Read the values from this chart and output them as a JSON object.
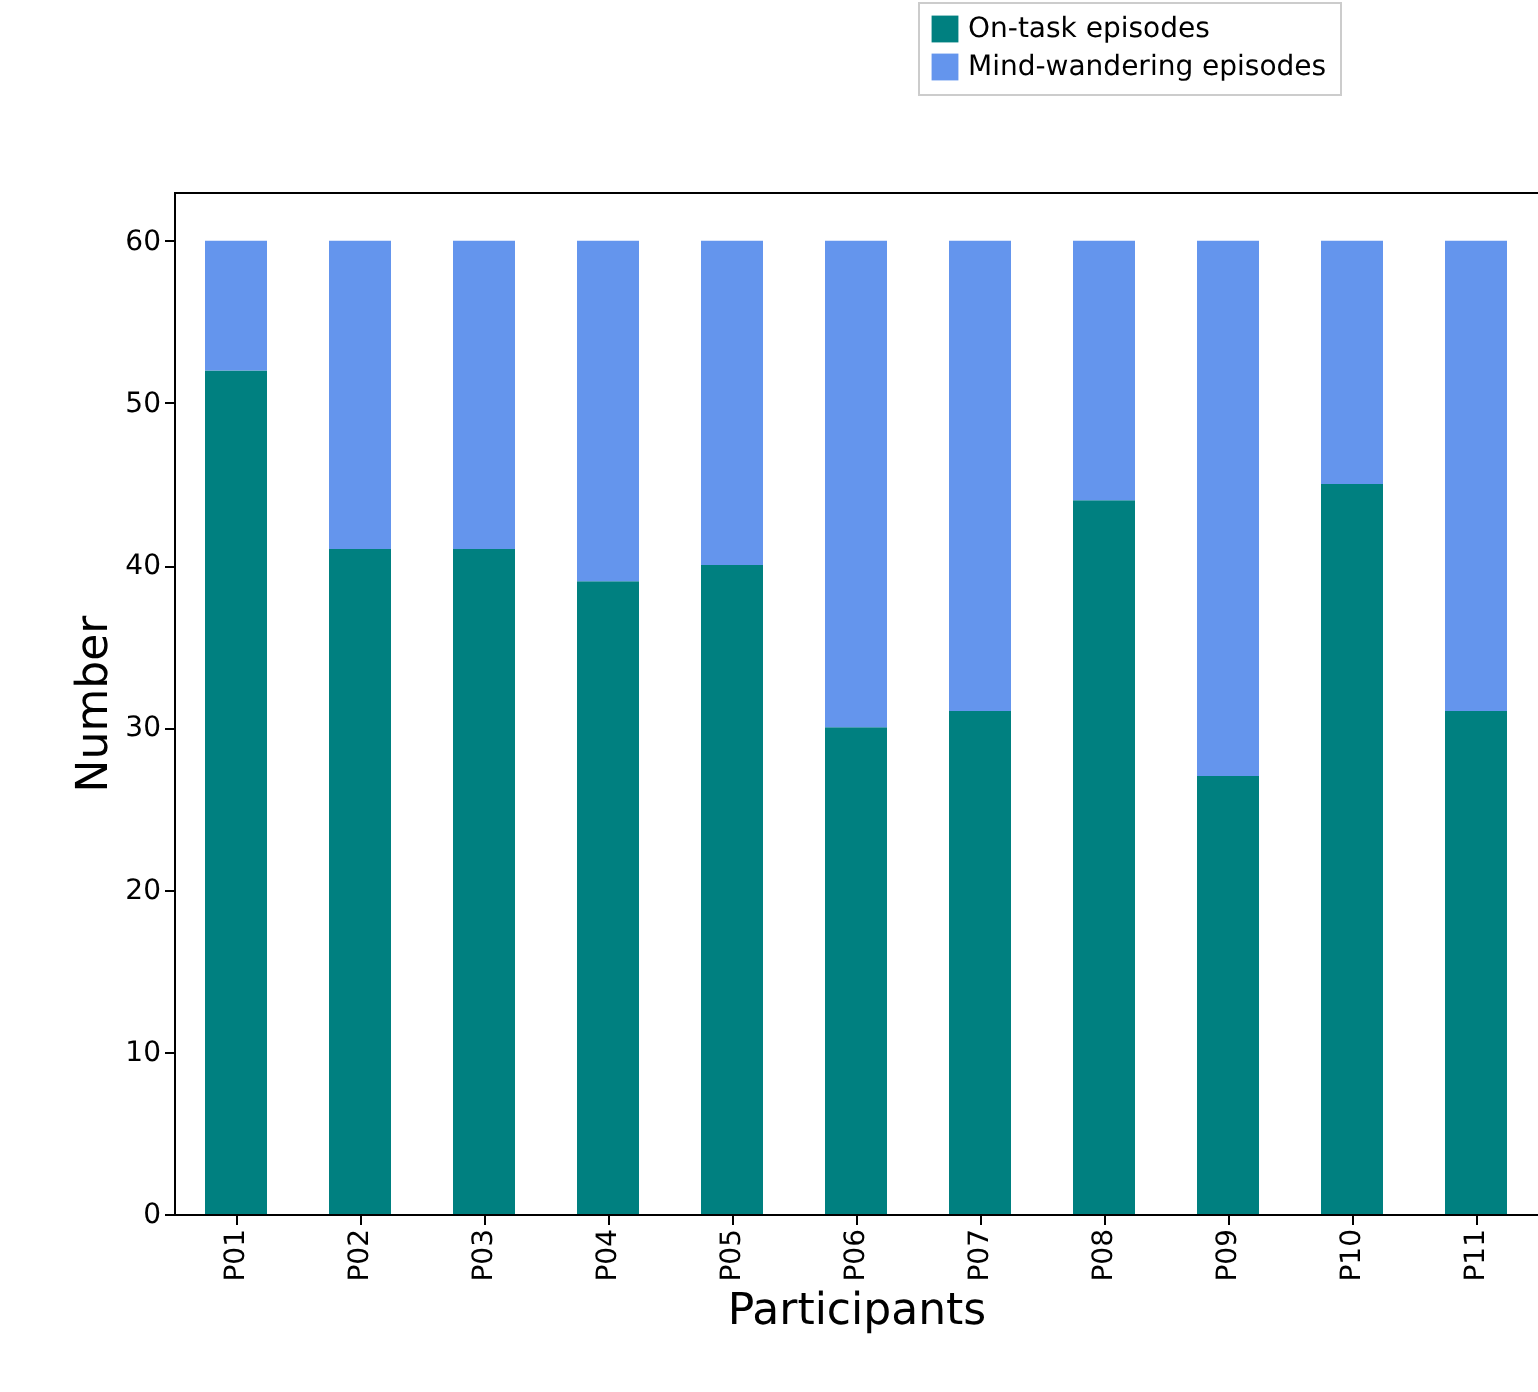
{
  "chart_data": {
    "type": "bar",
    "stacked": true,
    "xlabel": "Participants",
    "ylabel": "Number",
    "categories": [
      "P01",
      "P02",
      "P03",
      "P04",
      "P05",
      "P06",
      "P07",
      "P08",
      "P09",
      "P10",
      "P11"
    ],
    "series": [
      {
        "name": "On-task episodes",
        "color": "#008080",
        "values": [
          52,
          41,
          41,
          39,
          40,
          30,
          31,
          44,
          27,
          45,
          31
        ]
      },
      {
        "name": "Mind-wandering episodes",
        "color": "#6495ed",
        "values": [
          8,
          19,
          19,
          21,
          20,
          30,
          29,
          16,
          33,
          15,
          29
        ]
      }
    ],
    "ylim": [
      0,
      63
    ],
    "yticks": [
      0,
      10,
      20,
      30,
      40,
      50,
      60
    ],
    "grid": false,
    "legend": "top right"
  }
}
